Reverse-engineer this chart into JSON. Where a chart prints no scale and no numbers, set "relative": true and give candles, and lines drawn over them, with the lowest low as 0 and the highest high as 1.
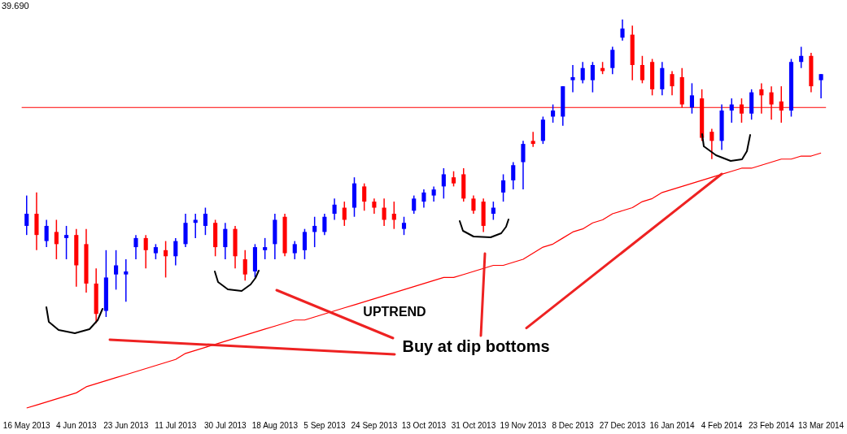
{
  "chart_data": {
    "type": "candlestick",
    "relative": true,
    "grid": false,
    "legend": false,
    "marker": "none",
    "annotations": [
      "39.690",
      "UPTREND",
      {
        "text": "Buy at dip bottoms",
        "x": "4 Feb 2014",
        "y": 0.49
      }
    ],
    "categories": [
      "16 May 2013",
      null,
      null,
      null,
      null,
      "4 Jun 2013",
      null,
      null,
      null,
      null,
      "23 Jun 2013",
      null,
      null,
      null,
      null,
      "11 Jul 2013",
      null,
      null,
      null,
      null,
      "30 Jul 2013",
      null,
      null,
      null,
      null,
      "18 Aug 2013",
      null,
      null,
      null,
      null,
      "5 Sep 2013",
      null,
      null,
      null,
      null,
      "24 Sep 2013",
      null,
      null,
      null,
      null,
      "13 Oct 2013",
      null,
      null,
      null,
      null,
      "31 Oct 2013",
      null,
      null,
      null,
      null,
      "19 Nov 2013",
      null,
      null,
      null,
      null,
      "8 Dec 2013",
      null,
      null,
      null,
      null,
      "27 Dec 2013",
      null,
      null,
      null,
      null,
      "16 Jan 2014",
      null,
      null,
      null,
      null,
      "4 Feb 2014",
      null,
      null,
      null,
      null,
      "23 Feb 2014",
      null,
      null,
      null,
      null,
      "13 Mar 2014"
    ],
    "ohlc": [
      [
        0.32,
        0.42,
        0.29,
        0.36
      ],
      [
        0.36,
        0.43,
        0.24,
        0.29
      ],
      [
        0.27,
        0.34,
        0.25,
        0.32
      ],
      [
        0.3,
        0.34,
        0.21,
        0.26
      ],
      [
        0.28,
        0.32,
        0.21,
        0.29
      ],
      [
        0.29,
        0.31,
        0.12,
        0.19
      ],
      [
        0.26,
        0.31,
        0.1,
        0.13
      ],
      [
        0.13,
        0.18,
        0,
        0.03
      ],
      [
        0.04,
        0.24,
        0.02,
        0.15
      ],
      [
        0.16,
        0.24,
        0.11,
        0.19
      ],
      [
        0.16,
        0.21,
        0.07,
        0.17
      ],
      [
        0.25,
        0.29,
        0.21,
        0.28
      ],
      [
        0.28,
        0.29,
        0.18,
        0.24
      ],
      [
        0.23,
        0.26,
        0.21,
        0.25
      ],
      [
        0.24,
        0.27,
        0.15,
        0.22
      ],
      [
        0.22,
        0.28,
        0.19,
        0.27
      ],
      [
        0.26,
        0.36,
        0.25,
        0.33
      ],
      [
        0.33,
        0.36,
        0.28,
        0.34
      ],
      [
        0.32,
        0.38,
        0.29,
        0.36
      ],
      [
        0.33,
        0.34,
        0.22,
        0.25
      ],
      [
        0.25,
        0.33,
        0.21,
        0.31
      ],
      [
        0.31,
        0.32,
        0.18,
        0.22
      ],
      [
        0.21,
        0.24,
        0.14,
        0.16
      ],
      [
        0.17,
        0.26,
        0.15,
        0.25
      ],
      [
        0.24,
        0.28,
        0.21,
        0.25
      ],
      [
        0.26,
        0.36,
        0.21,
        0.34
      ],
      [
        0.35,
        0.36,
        0.22,
        0.23
      ],
      [
        0.23,
        0.27,
        0.21,
        0.26
      ],
      [
        0.24,
        0.31,
        0.21,
        0.3
      ],
      [
        0.3,
        0.35,
        0.25,
        0.32
      ],
      [
        0.3,
        0.36,
        0.29,
        0.35
      ],
      [
        0.36,
        0.41,
        0.34,
        0.39
      ],
      [
        0.38,
        0.4,
        0.32,
        0.34
      ],
      [
        0.38,
        0.48,
        0.35,
        0.46
      ],
      [
        0.45,
        0.46,
        0.37,
        0.4
      ],
      [
        0.4,
        0.41,
        0.36,
        0.38
      ],
      [
        0.38,
        0.41,
        0.32,
        0.34
      ],
      [
        0.36,
        0.4,
        0.31,
        0.34
      ],
      [
        0.31,
        0.35,
        0.29,
        0.33
      ],
      [
        0.37,
        0.42,
        0.36,
        0.41
      ],
      [
        0.4,
        0.44,
        0.38,
        0.43
      ],
      [
        0.42,
        0.45,
        0.4,
        0.44
      ],
      [
        0.45,
        0.51,
        0.41,
        0.49
      ],
      [
        0.48,
        0.5,
        0.45,
        0.46
      ],
      [
        0.49,
        0.51,
        0.4,
        0.41
      ],
      [
        0.41,
        0.42,
        0.36,
        0.37
      ],
      [
        0.4,
        0.41,
        0.3,
        0.32
      ],
      [
        0.36,
        0.4,
        0.34,
        0.38
      ],
      [
        0.43,
        0.49,
        0.4,
        0.47
      ],
      [
        0.47,
        0.53,
        0.44,
        0.52
      ],
      [
        0.53,
        0.6,
        0.44,
        0.59
      ],
      [
        0.6,
        0.63,
        0.58,
        0.59
      ],
      [
        0.6,
        0.68,
        0.59,
        0.67
      ],
      [
        0.68,
        0.72,
        0.66,
        0.7
      ],
      [
        0.68,
        0.78,
        0.65,
        0.78
      ],
      [
        0.8,
        0.85,
        0.76,
        0.81
      ],
      [
        0.8,
        0.86,
        0.79,
        0.84
      ],
      [
        0.8,
        0.86,
        0.76,
        0.85
      ],
      [
        0.84,
        0.86,
        0.82,
        0.83
      ],
      [
        0.84,
        0.91,
        0.82,
        0.9
      ],
      [
        0.94,
        1,
        0.93,
        0.97
      ],
      [
        0.95,
        0.98,
        0.8,
        0.85
      ],
      [
        0.85,
        0.88,
        0.79,
        0.8
      ],
      [
        0.86,
        0.87,
        0.75,
        0.77
      ],
      [
        0.77,
        0.86,
        0.75,
        0.84
      ],
      [
        0.82,
        0.83,
        0.75,
        0.78
      ],
      [
        0.81,
        0.84,
        0.71,
        0.72
      ],
      [
        0.71,
        0.79,
        0.69,
        0.75
      ],
      [
        0.74,
        0.77,
        0.6,
        0.61
      ],
      [
        0.63,
        0.64,
        0.54,
        0.6
      ],
      [
        0.6,
        0.72,
        0.57,
        0.7
      ],
      [
        0.7,
        0.74,
        0.66,
        0.72
      ],
      [
        0.72,
        0.74,
        0.66,
        0.69
      ],
      [
        0.69,
        0.77,
        0.67,
        0.76
      ],
      [
        0.77,
        0.79,
        0.69,
        0.75
      ],
      [
        0.76,
        0.78,
        0.67,
        0.72
      ],
      [
        0.73,
        0.78,
        0.66,
        0.7
      ],
      [
        0.7,
        0.87,
        0.68,
        0.86
      ],
      [
        0.86,
        0.91,
        0.84,
        0.88
      ],
      [
        0.88,
        0.89,
        0.76,
        0.78
      ],
      [
        0.8,
        0.82,
        0.74,
        0.82
      ]
    ],
    "colors": [
      "#0000ff",
      "#ff0000",
      "#0000ff",
      "#ff0000",
      "#0000ff",
      "#ff0000",
      "#ff0000",
      "#ff0000",
      "#0000ff",
      "#0000ff",
      "#0000ff",
      "#0000ff",
      "#ff0000",
      "#0000ff",
      "#ff0000",
      "#0000ff",
      "#0000ff",
      "#0000ff",
      "#0000ff",
      "#ff0000",
      "#0000ff",
      "#ff0000",
      "#ff0000",
      "#0000ff",
      "#0000ff",
      "#0000ff",
      "#ff0000",
      "#0000ff",
      "#0000ff",
      "#0000ff",
      "#0000ff",
      "#0000ff",
      "#ff0000",
      "#0000ff",
      "#ff0000",
      "#ff0000",
      "#ff0000",
      "#ff0000",
      "#0000ff",
      "#0000ff",
      "#0000ff",
      "#0000ff",
      "#0000ff",
      "#ff0000",
      "#ff0000",
      "#ff0000",
      "#ff0000",
      "#0000ff",
      "#0000ff",
      "#0000ff",
      "#0000ff",
      "#ff0000",
      "#0000ff",
      "#0000ff",
      "#0000ff",
      "#0000ff",
      "#0000ff",
      "#0000ff",
      "#ff0000",
      "#0000ff",
      "#0000ff",
      "#ff0000",
      "#ff0000",
      "#ff0000",
      "#0000ff",
      "#ff0000",
      "#ff0000",
      "#0000ff",
      "#ff0000",
      "#ff0000",
      "#0000ff",
      "#0000ff",
      "#ff0000",
      "#0000ff",
      "#ff0000",
      "#ff0000",
      "#ff0000",
      "#0000ff",
      "#0000ff",
      "#ff0000",
      "#0000ff"
    ],
    "series": [
      {
        "type": "line",
        "color": "#ff0000",
        "values": [
          -0.28,
          -0.27,
          -0.26,
          -0.25,
          -0.24,
          -0.23,
          -0.21,
          -0.2,
          -0.19,
          -0.18,
          -0.17,
          -0.16,
          -0.15,
          -0.14,
          -0.13,
          -0.12,
          -0.1,
          -0.09,
          -0.08,
          -0.07,
          -0.06,
          -0.05,
          -0.04,
          -0.03,
          -0.02,
          -0.01,
          0,
          0.01,
          0.01,
          0.02,
          0.03,
          0.04,
          0.05,
          0.06,
          0.07,
          0.08,
          0.09,
          0.1,
          0.11,
          0.12,
          0.13,
          0.14,
          0.15,
          0.15,
          0.16,
          0.17,
          0.18,
          0.19,
          0.19,
          0.2,
          0.21,
          0.23,
          0.25,
          0.26,
          0.28,
          0.3,
          0.31,
          0.33,
          0.34,
          0.36,
          0.37,
          0.38,
          0.4,
          0.41,
          0.43,
          0.44,
          0.45,
          0.46,
          0.47,
          0.48,
          0.49,
          0.5,
          0.51,
          0.51,
          0.52,
          0.53,
          0.54,
          0.54,
          0.55,
          0.55,
          0.56
        ]
      }
    ],
    "ref_lines": [
      {
        "axis": "y",
        "value": 0.71,
        "color": "#ff0000"
      }
    ]
  }
}
